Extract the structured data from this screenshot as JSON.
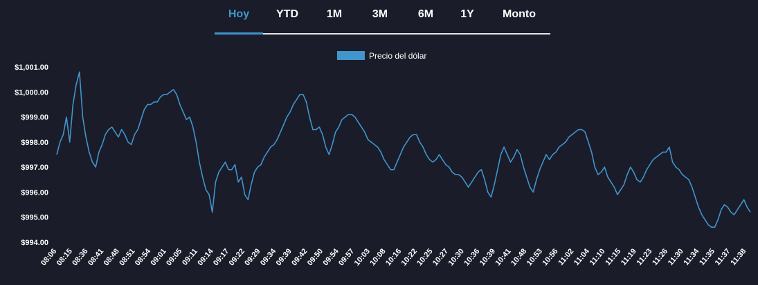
{
  "tabs": [
    {
      "label": "Hoy",
      "active": true
    },
    {
      "label": "YTD",
      "active": false
    },
    {
      "label": "1M",
      "active": false
    },
    {
      "label": "3M",
      "active": false
    },
    {
      "label": "6M",
      "active": false
    },
    {
      "label": "1Y",
      "active": false
    },
    {
      "label": "Monto",
      "active": false
    }
  ],
  "chart_data": {
    "type": "line",
    "title": "",
    "xlabel": "",
    "ylabel": "",
    "legend": "top-center",
    "grid": false,
    "line_color": "#3f95cc",
    "series": [
      {
        "name": "Precio del dólar",
        "values": [
          997.5,
          998.0,
          998.3,
          999.0,
          998.0,
          999.5,
          1000.3,
          1000.8,
          999.0,
          998.2,
          997.6,
          997.2,
          997.0,
          997.6,
          997.9,
          998.3,
          998.5,
          998.6,
          998.4,
          998.2,
          998.5,
          998.3,
          998.0,
          997.9,
          998.3,
          998.5,
          998.9,
          999.3,
          999.5,
          999.5,
          999.6,
          999.6,
          999.8,
          999.9,
          999.9,
          1000.0,
          1000.1,
          999.9,
          999.5,
          999.2,
          998.9,
          999.0,
          998.6,
          998.0,
          997.2,
          996.6,
          996.1,
          995.9,
          995.2,
          996.4,
          996.8,
          997.0,
          997.2,
          996.9,
          996.9,
          997.1,
          996.4,
          996.6,
          995.9,
          995.7,
          996.3,
          996.8,
          997.0,
          997.1,
          997.4,
          997.6,
          997.8,
          997.9,
          998.1,
          998.4,
          998.7,
          999.0,
          999.2,
          999.5,
          999.7,
          999.9,
          999.9,
          999.6,
          999.0,
          998.5,
          998.5,
          998.6,
          998.3,
          997.8,
          997.5,
          997.9,
          998.4,
          998.6,
          998.9,
          999.0,
          999.1,
          999.1,
          999.0,
          998.8,
          998.6,
          998.4,
          998.1,
          998.0,
          997.9,
          997.8,
          997.6,
          997.3,
          997.1,
          996.9,
          996.9,
          997.2,
          997.5,
          997.8,
          998.0,
          998.2,
          998.3,
          998.3,
          998.0,
          997.8,
          997.5,
          997.3,
          997.2,
          997.3,
          997.5,
          997.3,
          997.1,
          997.0,
          996.8,
          996.7,
          996.7,
          996.6,
          996.4,
          996.2,
          996.4,
          996.6,
          996.8,
          996.9,
          996.5,
          996.0,
          995.8,
          996.3,
          996.9,
          997.5,
          997.8,
          997.5,
          997.2,
          997.4,
          997.7,
          997.5,
          997.0,
          996.6,
          996.2,
          996.0,
          996.5,
          996.9,
          997.2,
          997.5,
          997.3,
          997.5,
          997.6,
          997.8,
          997.9,
          998.0,
          998.2,
          998.3,
          998.4,
          998.5,
          998.5,
          998.4,
          998.0,
          997.6,
          997.0,
          996.7,
          996.8,
          997.0,
          996.6,
          996.4,
          996.2,
          995.9,
          996.1,
          996.3,
          996.7,
          997.0,
          996.8,
          996.5,
          996.4,
          996.6,
          996.9,
          997.1,
          997.3,
          997.4,
          997.5,
          997.6,
          997.6,
          997.8,
          997.2,
          997.0,
          996.9,
          996.7,
          996.6,
          996.5,
          996.2,
          995.8,
          995.4,
          995.1,
          994.9,
          994.7,
          994.6,
          994.6,
          994.9,
          995.3,
          995.5,
          995.4,
          995.2,
          995.1,
          995.3,
          995.5,
          995.7,
          995.4,
          995.2
        ]
      }
    ],
    "x_tick_labels": [
      "08:06",
      "08:15",
      "08:36",
      "08:41",
      "08:48",
      "08:51",
      "08:54",
      "09:01",
      "09:05",
      "09:11",
      "09:14",
      "09:17",
      "09:22",
      "09:29",
      "09:34",
      "09:39",
      "09:42",
      "09:50",
      "09:54",
      "09:57",
      "10:03",
      "10:08",
      "10:16",
      "10:22",
      "10:25",
      "10:27",
      "10:30",
      "10:36",
      "10:39",
      "10:41",
      "10:48",
      "10:53",
      "10:56",
      "11:02",
      "11:04",
      "11:10",
      "11:15",
      "11:19",
      "11:23",
      "11:26",
      "11:30",
      "11:34",
      "11:35",
      "11:37",
      "11:38"
    ],
    "y_ticks": [
      994,
      995,
      996,
      997,
      998,
      999,
      1000,
      1001
    ],
    "y_tick_labels": [
      "$994.00",
      "$995.00",
      "$996.00",
      "$997.00",
      "$998.00",
      "$999.00",
      "$1,000.00",
      "$1,001.00"
    ],
    "ylim": [
      994,
      1001
    ]
  }
}
